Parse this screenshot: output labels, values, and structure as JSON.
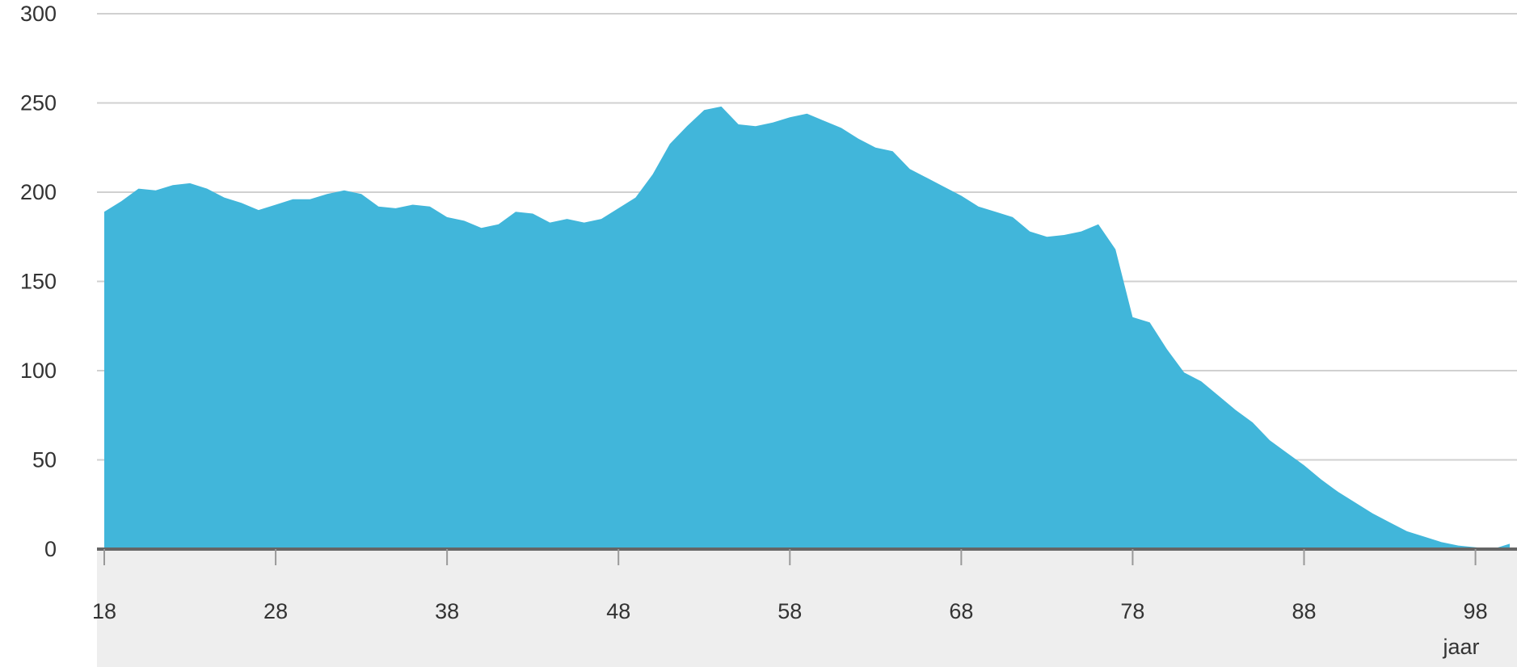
{
  "chart_data": {
    "type": "area",
    "title": "",
    "xlabel": "jaar",
    "ylabel": "",
    "xlim": [
      18,
      100
    ],
    "ylim": [
      0,
      300
    ],
    "grid": true,
    "colors": {
      "area": "#41b6da",
      "grid": "#d0d0d0",
      "axis": "#666666",
      "band": "#eeeeee"
    },
    "x_ticks": [
      18,
      28,
      38,
      48,
      58,
      68,
      78,
      88,
      98
    ],
    "y_ticks": [
      0,
      50,
      100,
      150,
      200,
      250,
      300
    ],
    "x": [
      18,
      19,
      20,
      21,
      22,
      23,
      24,
      25,
      26,
      27,
      28,
      29,
      30,
      31,
      32,
      33,
      34,
      35,
      36,
      37,
      38,
      39,
      40,
      41,
      42,
      43,
      44,
      45,
      46,
      47,
      48,
      49,
      50,
      51,
      52,
      53,
      54,
      55,
      56,
      57,
      58,
      59,
      60,
      61,
      62,
      63,
      64,
      65,
      66,
      67,
      68,
      69,
      70,
      71,
      72,
      73,
      74,
      75,
      76,
      77,
      78,
      79,
      80,
      81,
      82,
      83,
      84,
      85,
      86,
      87,
      88,
      89,
      90,
      91,
      92,
      93,
      94,
      95,
      96,
      97,
      98,
      99,
      100
    ],
    "values": [
      189,
      195,
      202,
      201,
      204,
      205,
      202,
      197,
      194,
      190,
      193,
      196,
      196,
      199,
      201,
      199,
      192,
      191,
      193,
      192,
      186,
      184,
      180,
      182,
      189,
      188,
      183,
      185,
      183,
      185,
      191,
      197,
      210,
      227,
      237,
      246,
      248,
      238,
      237,
      239,
      242,
      244,
      240,
      236,
      230,
      225,
      223,
      213,
      208,
      203,
      198,
      192,
      189,
      186,
      178,
      175,
      176,
      178,
      182,
      168,
      130,
      127,
      112,
      99,
      94,
      86,
      78,
      71,
      61,
      54,
      47,
      39,
      32,
      26,
      20,
      15,
      10,
      7,
      4,
      2,
      1,
      0,
      3
    ],
    "series": [
      {
        "values_ref": "values"
      }
    ]
  }
}
